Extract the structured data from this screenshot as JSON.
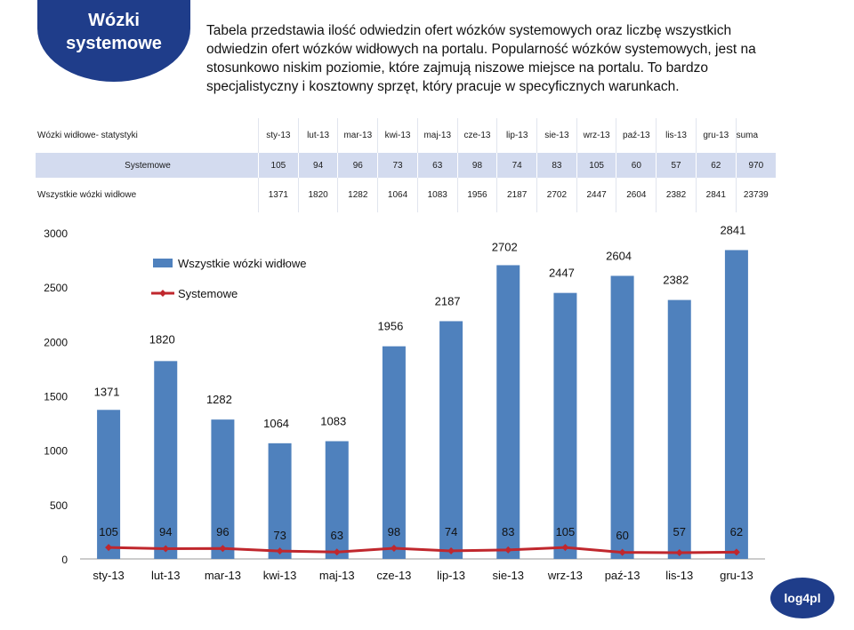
{
  "header": {
    "badge_line1": "Wózki",
    "badge_line2": "systemowe",
    "description": "Tabela przedstawia ilość odwiedzin ofert wózków systemowych oraz liczbę wszystkich odwiedzin ofert wózków widłowych na portalu. Popularność wózków systemowych, jest na stosunkowo niskim poziomie, które zajmują niszowe miejsce na portalu. To bardzo specjalistyczny i kosztowny sprzęt, który pracuje w specyficznych warunkach."
  },
  "table": {
    "title": "Wózki widłowe- statystyki",
    "months": [
      "sty-13",
      "lut-13",
      "mar-13",
      "kwi-13",
      "maj-13",
      "cze-13",
      "lip-13",
      "sie-13",
      "wrz-13",
      "paź-13",
      "lis-13",
      "gru-13"
    ],
    "sum_label": "suma",
    "rows": [
      {
        "label": "Systemowe",
        "values": [
          "105",
          "94",
          "96",
          "73",
          "63",
          "98",
          "74",
          "83",
          "105",
          "60",
          "57",
          "62"
        ],
        "sum": "970"
      },
      {
        "label": "Wszystkie wózki widłowe",
        "values": [
          "1371",
          "1820",
          "1282",
          "1064",
          "1083",
          "1956",
          "2187",
          "2702",
          "2447",
          "2604",
          "2382",
          "2841"
        ],
        "sum": "23739"
      }
    ]
  },
  "chart_data": {
    "type": "bar",
    "categories": [
      "sty-13",
      "lut-13",
      "mar-13",
      "kwi-13",
      "maj-13",
      "cze-13",
      "lip-13",
      "sie-13",
      "wrz-13",
      "paź-13",
      "lis-13",
      "gru-13"
    ],
    "series": [
      {
        "name": "Wszystkie wózki widłowe",
        "kind": "bar",
        "color": "#4f81bd",
        "values": [
          1371,
          1820,
          1282,
          1064,
          1083,
          1956,
          2187,
          2702,
          2447,
          2604,
          2382,
          2841
        ]
      },
      {
        "name": "Systemowe",
        "kind": "line",
        "color": "#c0272d",
        "values": [
          105,
          94,
          96,
          73,
          63,
          98,
          74,
          83,
          105,
          60,
          57,
          62
        ]
      }
    ],
    "yticks": [
      "0",
      "500",
      "1000",
      "1500",
      "2000",
      "2500",
      "3000"
    ],
    "ylim": [
      0,
      3000
    ],
    "legend": "top-left"
  },
  "logo": {
    "text": "log4pl"
  }
}
